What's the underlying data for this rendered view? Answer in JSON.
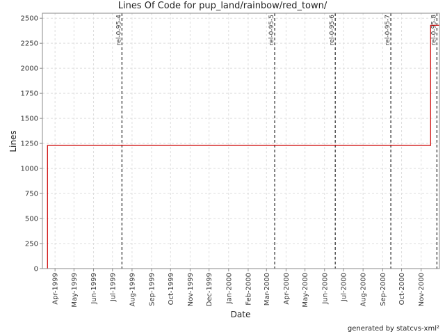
{
  "chart_data": {
    "type": "line",
    "title": "Lines Of Code for pup_land/rainbow/red_town/",
    "xlabel": "Date",
    "ylabel": "Lines",
    "xlim": [
      "1999-03-12",
      "2000-11-30"
    ],
    "ylim": [
      0,
      2550
    ],
    "yticks": [
      0,
      250,
      500,
      750,
      1000,
      1250,
      1500,
      1750,
      2000,
      2250,
      2500
    ],
    "xticks": [
      {
        "date": "1999-04-01",
        "label": "Apr-1999"
      },
      {
        "date": "1999-05-01",
        "label": "May-1999"
      },
      {
        "date": "1999-06-01",
        "label": "Jun-1999"
      },
      {
        "date": "1999-07-01",
        "label": "Jul-1999"
      },
      {
        "date": "1999-08-01",
        "label": "Aug-1999"
      },
      {
        "date": "1999-09-01",
        "label": "Sep-1999"
      },
      {
        "date": "1999-10-01",
        "label": "Oct-1999"
      },
      {
        "date": "1999-11-01",
        "label": "Nov-1999"
      },
      {
        "date": "1999-12-01",
        "label": "Dec-1999"
      },
      {
        "date": "2000-01-01",
        "label": "Jan-2000"
      },
      {
        "date": "2000-02-01",
        "label": "Feb-2000"
      },
      {
        "date": "2000-03-01",
        "label": "Mar-2000"
      },
      {
        "date": "2000-04-01",
        "label": "Apr-2000"
      },
      {
        "date": "2000-05-01",
        "label": "May-2000"
      },
      {
        "date": "2000-06-01",
        "label": "Jun-2000"
      },
      {
        "date": "2000-07-01",
        "label": "Jul-2000"
      },
      {
        "date": "2000-08-01",
        "label": "Aug-2000"
      },
      {
        "date": "2000-09-01",
        "label": "Sep-2000"
      },
      {
        "date": "2000-10-01",
        "label": "Oct-2000"
      },
      {
        "date": "2000-11-01",
        "label": "Nov-2000"
      }
    ],
    "grid": true,
    "series": [
      {
        "color": "#cc0000",
        "step": true,
        "points": [
          {
            "date": "1999-03-20",
            "value": 0
          },
          {
            "date": "1999-03-20",
            "value": 1230
          },
          {
            "date": "2000-11-16",
            "value": 1230
          },
          {
            "date": "2000-11-16",
            "value": 2430
          },
          {
            "date": "2000-11-30",
            "value": 2430
          }
        ]
      }
    ],
    "markers": [
      {
        "date": "1999-07-16",
        "label": "rel-0-95-4"
      },
      {
        "date": "2000-03-14",
        "label": "rel-0-95-5"
      },
      {
        "date": "2000-06-18",
        "label": "rel-0-95-6"
      },
      {
        "date": "2000-09-14",
        "label": "rel-0-95-7"
      },
      {
        "date": "2000-11-26",
        "label": "rel-0-95-8"
      }
    ]
  },
  "footer": "generated by statcvs-xml²"
}
